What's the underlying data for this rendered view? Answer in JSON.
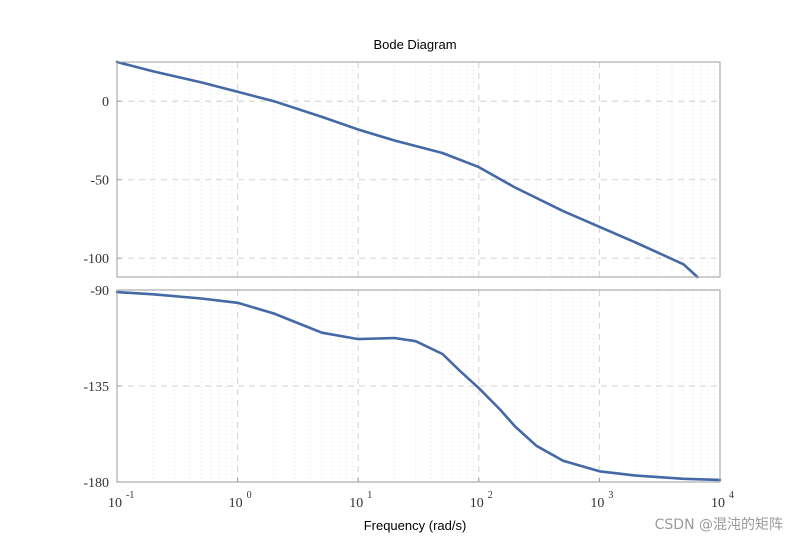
{
  "chart_data": {
    "type": "line",
    "title": "Bode Diagram",
    "xlabel": "Frequency  (rad/s)",
    "xscale": "log",
    "xlim": [
      0.1,
      10000
    ],
    "x_ticks": [
      {
        "base": "10",
        "exp": "-1"
      },
      {
        "base": "10",
        "exp": "0"
      },
      {
        "base": "10",
        "exp": "1"
      },
      {
        "base": "10",
        "exp": "2"
      },
      {
        "base": "10",
        "exp": "3"
      },
      {
        "base": "10",
        "exp": "4"
      }
    ],
    "grid": true,
    "panels": [
      {
        "name": "magnitude",
        "ylim": [
          -112,
          25
        ],
        "y_ticks": [
          0,
          -50,
          -100
        ],
        "y_tick_labels": [
          "0",
          "-50",
          "-100"
        ],
        "series": [
          {
            "color": "#4469a6",
            "x": [
              0.1,
              0.2,
              0.5,
              1,
              2,
              5,
              10,
              20,
              50,
              100,
              200,
              500,
              1000,
              2000,
              5000,
              6500
            ],
            "y": [
              25,
              19,
              12,
              6,
              0,
              -10,
              -18,
              -25,
              -33,
              -42,
              -55,
              -70,
              -80,
              -90,
              -104,
              -112
            ]
          }
        ]
      },
      {
        "name": "phase",
        "ylim": [
          -180,
          -90
        ],
        "y_ticks": [
          -90,
          -135,
          -180
        ],
        "y_tick_labels": [
          "-90",
          "-135",
          "-180"
        ],
        "series": [
          {
            "color": "#4469a6",
            "x": [
              0.1,
              0.2,
              0.5,
              1,
              2,
              3,
              5,
              10,
              20,
              30,
              50,
              70,
              100,
              150,
              200,
              300,
              500,
              1000,
              2000,
              5000,
              10000
            ],
            "y": [
              -91,
              -92,
              -94,
              -96,
              -101,
              -105,
              -110,
              -113,
              -112.5,
              -114,
              -120,
              -128,
              -136,
              -146,
              -154,
              -163,
              -170,
              -175,
              -177,
              -178.5,
              -179
            ]
          }
        ]
      }
    ]
  },
  "watermark": "CSDN @混沌的矩阵"
}
